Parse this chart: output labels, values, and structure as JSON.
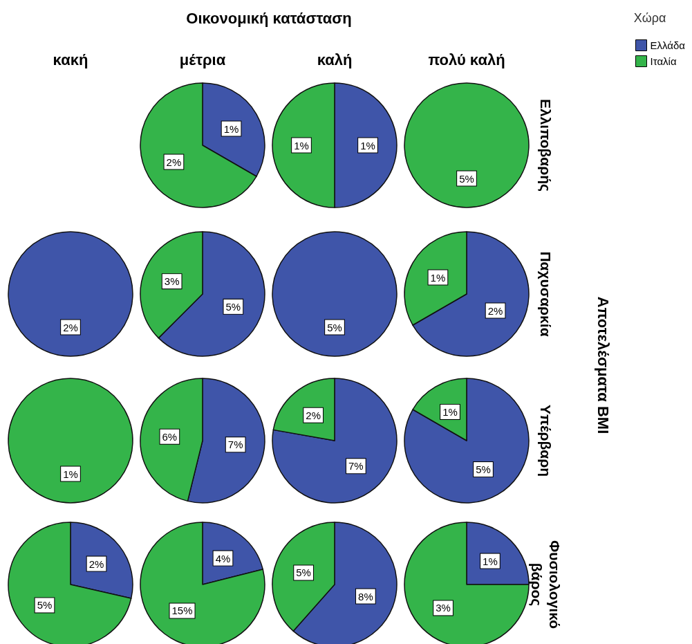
{
  "chart_data": [
    {
      "type": "other",
      "title": "Οικονομική κατάσταση",
      "categories": [
        "κακή",
        "μέτρια",
        "καλή",
        "πολύ καλή"
      ],
      "y_categories": [
        "Ελλιποβαρής",
        "Παχυσαρκία",
        "Υπέρβαρη",
        "Φυσιολογικό βάρος"
      ],
      "y2label": "Αποτελέσματα BMI"
    },
    {
      "type": "pie",
      "categories": [
        "Ελλάδα",
        "Ιταλία"
      ],
      "values": [
        1,
        2
      ],
      "value_labels": [
        "1%",
        "2%"
      ],
      "colors": [
        "#3f55a9",
        "#34b44a"
      ],
      "legend": "top right",
      "legend_title": "Χώρα"
    },
    {
      "type": "pie",
      "values": [
        1,
        1
      ],
      "value_labels": [
        "1%",
        "1%"
      ],
      "colors": [
        "#3f55a9",
        "#34b44a"
      ]
    },
    {
      "type": "pie",
      "values": [
        null,
        5
      ],
      "value_labels": [
        null,
        "5%"
      ],
      "colors": [
        "#3f55a9",
        "#34b44a"
      ]
    },
    {
      "type": "pie",
      "values": [
        2,
        null
      ],
      "value_labels": [
        "2%",
        null
      ],
      "colors": [
        "#3f55a9",
        "#34b44a"
      ]
    },
    {
      "type": "pie",
      "values": [
        5,
        3
      ],
      "value_labels": [
        "5%",
        "3%"
      ],
      "colors": [
        "#3f55a9",
        "#34b44a"
      ]
    },
    {
      "type": "pie",
      "values": [
        5,
        null
      ],
      "value_labels": [
        "5%",
        null
      ],
      "colors": [
        "#3f55a9",
        "#34b44a"
      ]
    },
    {
      "type": "pie",
      "values": [
        2,
        1
      ],
      "value_labels": [
        "2%",
        "1%"
      ],
      "colors": [
        "#3f55a9",
        "#34b44a"
      ]
    },
    {
      "type": "pie",
      "values": [
        null,
        1
      ],
      "value_labels": [
        null,
        "1%"
      ],
      "colors": [
        "#3f55a9",
        "#34b44a"
      ]
    },
    {
      "type": "pie",
      "values": [
        7,
        6
      ],
      "value_labels": [
        "7%",
        "6%"
      ],
      "colors": [
        "#3f55a9",
        "#34b44a"
      ]
    },
    {
      "type": "pie",
      "values": [
        7,
        2
      ],
      "value_labels": [
        "7%",
        "2%"
      ],
      "colors": [
        "#3f55a9",
        "#34b44a"
      ]
    },
    {
      "type": "pie",
      "values": [
        5,
        1
      ],
      "value_labels": [
        "5%",
        "1%"
      ],
      "colors": [
        "#3f55a9",
        "#34b44a"
      ]
    },
    {
      "type": "pie",
      "values": [
        2,
        5
      ],
      "value_labels": [
        "2%",
        "5%"
      ],
      "colors": [
        "#3f55a9",
        "#34b44a"
      ]
    },
    {
      "type": "pie",
      "values": [
        4,
        15
      ],
      "value_labels": [
        "4%",
        "15%"
      ],
      "colors": [
        "#3f55a9",
        "#34b44a"
      ]
    },
    {
      "type": "pie",
      "values": [
        8,
        5
      ],
      "value_labels": [
        "8%",
        "5%"
      ],
      "colors": [
        "#3f55a9",
        "#34b44a"
      ]
    },
    {
      "type": "pie",
      "values": [
        1,
        3
      ],
      "value_labels": [
        "1%",
        "3%"
      ],
      "colors": [
        "#3f55a9",
        "#34b44a"
      ]
    }
  ]
}
